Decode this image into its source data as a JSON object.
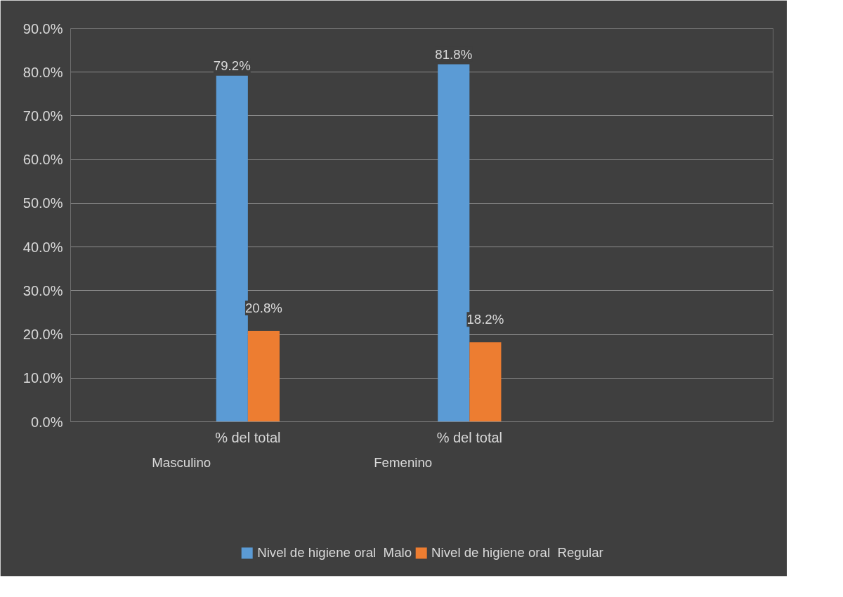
{
  "chart_data": {
    "type": "bar",
    "categories": [
      "% del total",
      "% del total"
    ],
    "series": [
      {
        "name": "Nivel de higiene oral  Malo",
        "color": "#5b9bd5",
        "values": [
          79.2,
          81.8
        ],
        "value_labels": [
          "79.2%",
          "81.8%"
        ]
      },
      {
        "name": "Nivel de higiene oral  Regular",
        "color": "#ed7d31",
        "values": [
          20.8,
          18.2
        ],
        "value_labels": [
          "20.8%",
          "18.2%"
        ]
      }
    ],
    "annotations": [
      "Masculino",
      "Femenino"
    ],
    "ylim": [
      0,
      90
    ],
    "yticks": [
      {
        "value": 0,
        "label": "0.0%"
      },
      {
        "value": 10,
        "label": "10.0%"
      },
      {
        "value": 20,
        "label": "20.0%"
      },
      {
        "value": 30,
        "label": "30.0%"
      },
      {
        "value": 40,
        "label": "40.0%"
      },
      {
        "value": 50,
        "label": "50.0%"
      },
      {
        "value": 60,
        "label": "60.0%"
      },
      {
        "value": 70,
        "label": "70.0%"
      },
      {
        "value": 80,
        "label": "80.0%"
      },
      {
        "value": 90,
        "label": "90.0%"
      }
    ],
    "grid": "y",
    "legend": "bottom"
  }
}
